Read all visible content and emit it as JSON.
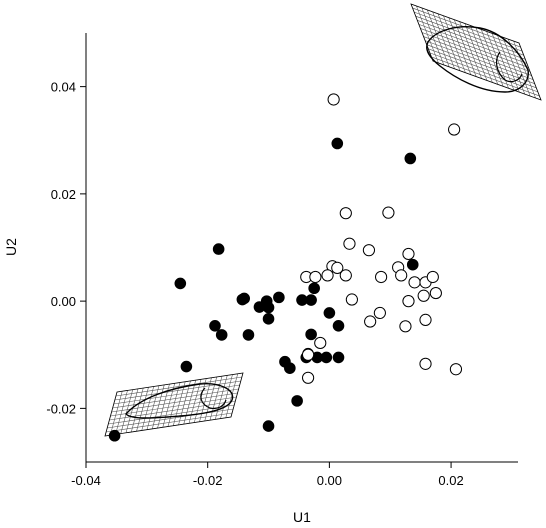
{
  "chart_data": {
    "type": "scatter",
    "xlabel": "U1",
    "ylabel": "U2",
    "xlim": [
      -0.04,
      0.031
    ],
    "ylim": [
      -0.03,
      0.05
    ],
    "xticks": [
      "-0.04",
      "-0.02",
      "0.00",
      "0.02"
    ],
    "xtick_values": [
      -0.04,
      -0.02,
      0.0,
      0.02
    ],
    "yticks": [
      "-0.02",
      "0.00",
      "0.02",
      "0.04"
    ],
    "ytick_values": [
      -0.02,
      0.0,
      0.02,
      0.04
    ],
    "grid": false,
    "legend": "none",
    "series": [
      {
        "marker": "filled-circle",
        "color": "#000000",
        "points": [
          [
            -0.0353,
            -0.0251
          ],
          [
            -0.0245,
            0.0033
          ],
          [
            -0.0235,
            -0.0122
          ],
          [
            -0.0182,
            0.0097
          ],
          [
            -0.0188,
            -0.0046
          ],
          [
            -0.0177,
            -0.0063
          ],
          [
            -0.0143,
            0.0003
          ],
          [
            -0.014,
            0.0005
          ],
          [
            -0.0133,
            -0.0063
          ],
          [
            -0.0115,
            -0.0011
          ],
          [
            -0.0103,
            0.0
          ],
          [
            -0.01,
            -0.0033
          ],
          [
            -0.01,
            -0.0012
          ],
          [
            -0.01,
            -0.0233
          ],
          [
            -0.0083,
            0.0007
          ],
          [
            -0.0073,
            -0.0113
          ],
          [
            -0.0065,
            -0.0125
          ],
          [
            -0.0053,
            -0.0186
          ],
          [
            -0.0045,
            0.0002
          ],
          [
            -0.0038,
            -0.0105
          ],
          [
            -0.0035,
            -0.0098
          ],
          [
            -0.003,
            0.0002
          ],
          [
            -0.003,
            -0.0062
          ],
          [
            -0.0025,
            0.0024
          ],
          [
            -0.002,
            -0.0105
          ],
          [
            -0.0005,
            -0.0105
          ],
          [
            0.0,
            -0.0022
          ],
          [
            0.0013,
            0.0294
          ],
          [
            0.0015,
            -0.0046
          ],
          [
            0.0015,
            -0.0105
          ],
          [
            0.0133,
            0.0266
          ],
          [
            0.0137,
            0.0068
          ]
        ]
      },
      {
        "marker": "open-circle",
        "color": "#000000",
        "points": [
          [
            0.0007,
            0.0376
          ],
          [
            0.0205,
            0.032
          ],
          [
            0.0027,
            0.0164
          ],
          [
            0.0097,
            0.0165
          ],
          [
            0.0033,
            0.0107
          ],
          [
            0.0065,
            0.0095
          ],
          [
            0.013,
            0.0088
          ],
          [
            0.0005,
            0.0065
          ],
          [
            0.0013,
            0.0062
          ],
          [
            0.0027,
            0.0048
          ],
          [
            0.0085,
            0.0045
          ],
          [
            0.0113,
            0.0063
          ],
          [
            0.0118,
            0.0048
          ],
          [
            0.014,
            0.0035
          ],
          [
            0.0158,
            0.0035
          ],
          [
            0.017,
            0.0045
          ],
          [
            -0.0038,
            0.0045
          ],
          [
            -0.0023,
            0.0045
          ],
          [
            -0.0003,
            0.0048
          ],
          [
            0.0037,
            0.0003
          ],
          [
            0.0155,
            0.001
          ],
          [
            0.0175,
            0.0015
          ],
          [
            0.013,
            0.0
          ],
          [
            0.0083,
            -0.0022
          ],
          [
            0.0067,
            -0.0038
          ],
          [
            0.0125,
            -0.0047
          ],
          [
            0.0158,
            -0.0035
          ],
          [
            -0.0015,
            -0.0078
          ],
          [
            -0.0035,
            -0.01
          ],
          [
            -0.0035,
            -0.0143
          ],
          [
            0.0158,
            -0.0117
          ],
          [
            0.0208,
            -0.0127
          ]
        ]
      }
    ]
  }
}
